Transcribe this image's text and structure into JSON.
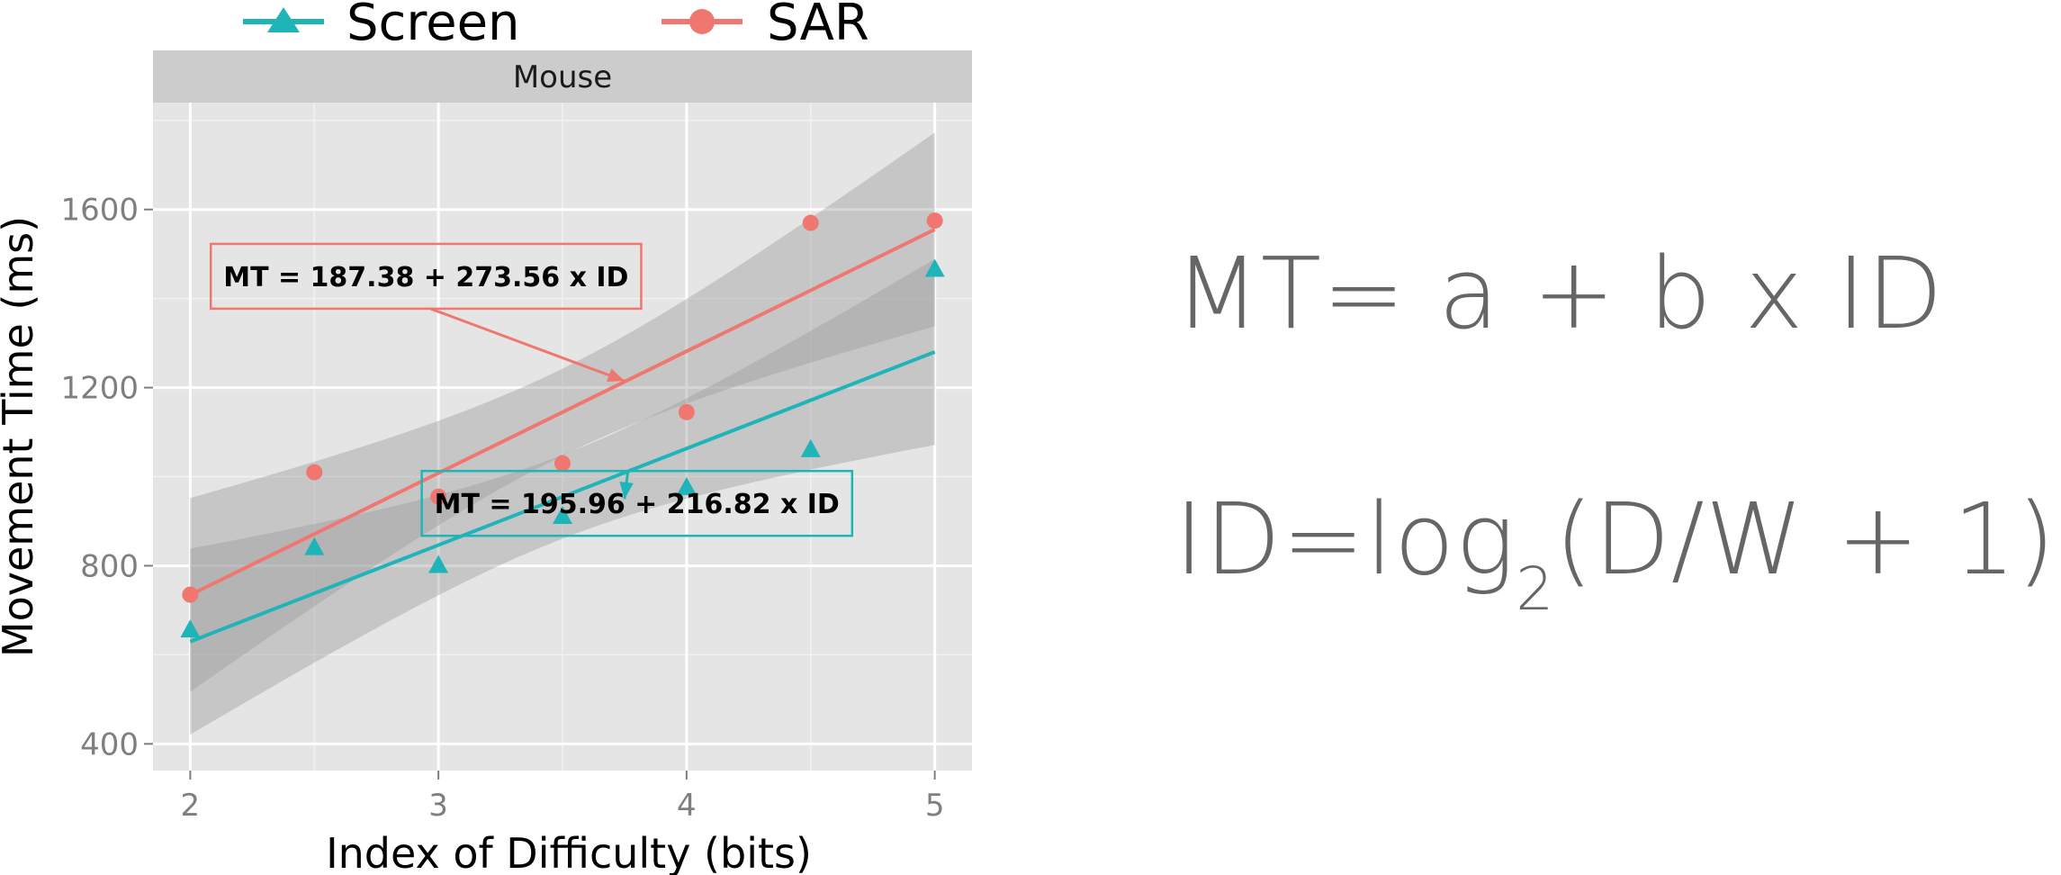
{
  "chart_data": {
    "type": "scatter",
    "title": "",
    "facet_label": "Mouse",
    "xlabel": "Index of Difficulty (bits)",
    "ylabel": "Movement Time (ms)",
    "xlim": [
      1.85,
      5.15
    ],
    "ylim": [
      340,
      1840
    ],
    "x_ticks": [
      2,
      3,
      4,
      5
    ],
    "y_ticks": [
      400,
      800,
      1200,
      1600
    ],
    "grid": true,
    "legend_position": "top",
    "series": [
      {
        "name": "Screen",
        "marker": "triangle",
        "color": "#1fb5b8",
        "x": [
          2,
          2.5,
          3,
          3.5,
          4,
          4.5,
          5
        ],
        "y": [
          655,
          840,
          800,
          910,
          975,
          1060,
          1465
        ],
        "fit": {
          "intercept": 195.96,
          "slope": 216.82
        },
        "band": {
          "lower": [
            420,
            1075
          ],
          "upper": [
            840,
            1490
          ]
        },
        "annotation": "MT = 195.96 + 216.82 x ID",
        "annotation_at": [
          3.8,
          940
        ],
        "arrow_to": [
          3.75,
          950
        ]
      },
      {
        "name": "SAR",
        "marker": "circle",
        "color": "#f07770",
        "x": [
          2,
          2.5,
          3,
          3.5,
          4,
          4.5,
          5
        ],
        "y": [
          735,
          1010,
          955,
          1030,
          1145,
          1570,
          1575
        ],
        "fit": {
          "intercept": 187.38,
          "slope": 273.56
        },
        "band": {
          "lower": [
            520,
            1340
          ],
          "upper": [
            955,
            1775
          ]
        },
        "annotation": "MT = 187.38  + 273.56 x ID",
        "annotation_at": [
          2.95,
          1450
        ],
        "arrow_to": [
          3.75,
          1215
        ]
      }
    ],
    "formulas": {
      "model": "MT= a + b x ID",
      "index_prefix": "ID=log",
      "index_sub": "2",
      "index_suffix": "(D/W + 1)"
    }
  }
}
